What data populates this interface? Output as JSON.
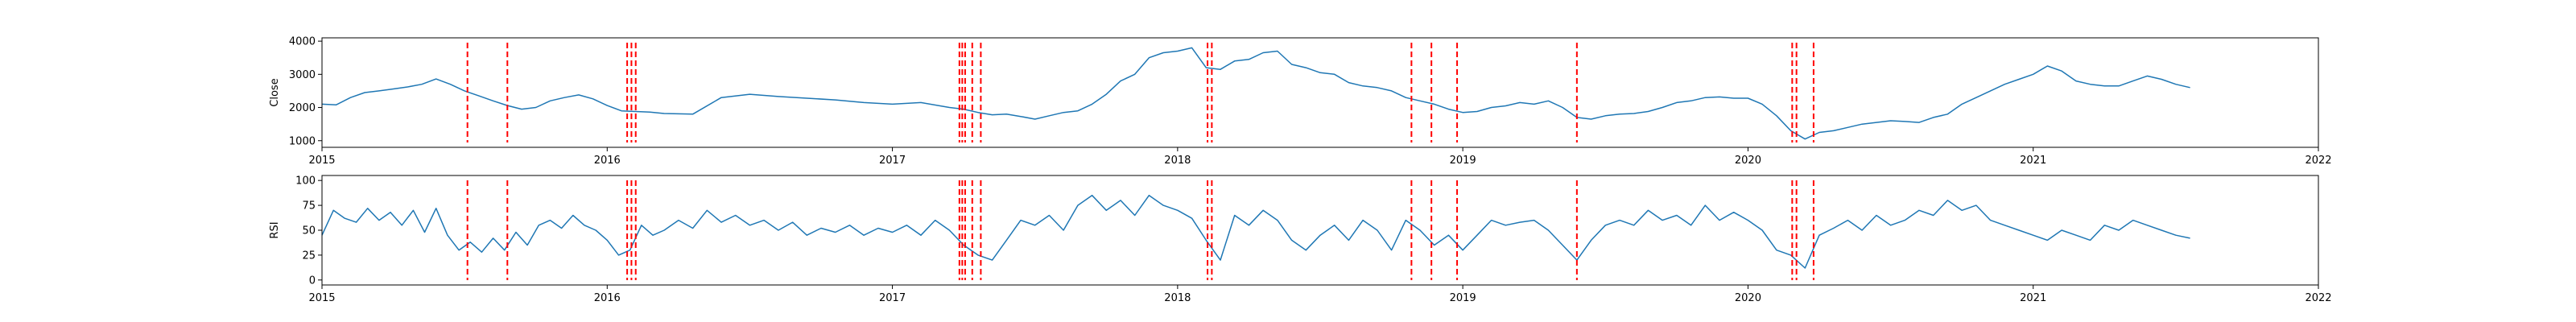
{
  "chart_data": [
    {
      "type": "line",
      "title": "",
      "xlabel": "",
      "ylabel": "Close",
      "xlim": [
        2015.0,
        2022.0
      ],
      "ylim": [
        800,
        4100
      ],
      "xticks": [
        2015,
        2016,
        2017,
        2018,
        2019,
        2020,
        2021,
        2022
      ],
      "xtick_labels": [
        "2015",
        "2016",
        "2017",
        "2018",
        "2019",
        "2020",
        "2021",
        "2022"
      ],
      "yticks": [
        1000,
        2000,
        3000,
        4000
      ],
      "ytick_labels": [
        "1000",
        "2000",
        "3000",
        "4000"
      ],
      "grid": false,
      "series_color": "#1f77b4",
      "marker_color": "#ff0000",
      "series": [
        {
          "x": [
            2015.0,
            2015.05,
            2015.1,
            2015.15,
            2015.2,
            2015.25,
            2015.3,
            2015.35,
            2015.4,
            2015.45,
            2015.5,
            2015.55,
            2015.6,
            2015.65,
            2015.7,
            2015.75,
            2015.8,
            2015.85,
            2015.9,
            2015.95,
            2016.0,
            2016.05,
            2016.1,
            2016.15,
            2016.2,
            2016.3,
            2016.4,
            2016.5,
            2016.6,
            2016.7,
            2016.8,
            2016.9,
            2017.0,
            2017.1,
            2017.2,
            2017.25,
            2017.3,
            2017.35,
            2017.4,
            2017.45,
            2017.5,
            2017.55,
            2017.6,
            2017.65,
            2017.7,
            2017.75,
            2017.8,
            2017.85,
            2017.9,
            2017.95,
            2018.0,
            2018.05,
            2018.1,
            2018.15,
            2018.2,
            2018.25,
            2018.3,
            2018.35,
            2018.4,
            2018.45,
            2018.5,
            2018.55,
            2018.6,
            2018.65,
            2018.7,
            2018.75,
            2018.8,
            2018.85,
            2018.9,
            2018.95,
            2019.0,
            2019.05,
            2019.1,
            2019.15,
            2019.2,
            2019.25,
            2019.3,
            2019.35,
            2019.4,
            2019.45,
            2019.5,
            2019.55,
            2019.6,
            2019.65,
            2019.7,
            2019.75,
            2019.8,
            2019.85,
            2019.9,
            2019.95,
            2020.0,
            2020.05,
            2020.1,
            2020.15,
            2020.2,
            2020.25,
            2020.3,
            2020.35,
            2020.4,
            2020.45,
            2020.5,
            2020.55,
            2020.6,
            2020.65,
            2020.7,
            2020.75,
            2020.8,
            2020.85,
            2020.9,
            2020.95,
            2021.0,
            2021.05,
            2021.1,
            2021.15,
            2021.2,
            2021.25,
            2021.3,
            2021.35,
            2021.4,
            2021.45,
            2021.5,
            2021.55
          ],
          "values": [
            2100,
            2080,
            2300,
            2450,
            2500,
            2560,
            2620,
            2700,
            2860,
            2700,
            2500,
            2350,
            2200,
            2060,
            1950,
            2000,
            2200,
            2300,
            2380,
            2260,
            2060,
            1900,
            1880,
            1860,
            1820,
            1800,
            2300,
            2400,
            2330,
            2280,
            2230,
            2150,
            2100,
            2150,
            2000,
            1950,
            1850,
            1780,
            1800,
            1730,
            1650,
            1750,
            1850,
            1900,
            2100,
            2400,
            2800,
            3000,
            3500,
            3650,
            3700,
            3800,
            3200,
            3150,
            3400,
            3450,
            3650,
            3700,
            3300,
            3200,
            3050,
            3000,
            2750,
            2650,
            2600,
            2500,
            2300,
            2200,
            2100,
            1950,
            1850,
            1880,
            2000,
            2050,
            2150,
            2100,
            2200,
            2000,
            1700,
            1650,
            1750,
            1800,
            1820,
            1880,
            2000,
            2150,
            2200,
            2300,
            2320,
            2280,
            2280,
            2100,
            1750,
            1300,
            1050,
            1250,
            1300,
            1400,
            1500,
            1550,
            1600,
            1580,
            1550,
            1700,
            1800,
            2100,
            2300,
            2500,
            2700,
            2850,
            3000,
            3250,
            3100,
            2800,
            2700,
            2650,
            2650,
            2800,
            2950,
            2850,
            2700,
            2600
          ]
        }
      ]
    },
    {
      "type": "line",
      "title": "",
      "xlabel": "",
      "ylabel": "RSI",
      "xlim": [
        2015.0,
        2022.0
      ],
      "ylim": [
        -5,
        105
      ],
      "xticks": [
        2015,
        2016,
        2017,
        2018,
        2019,
        2020,
        2021,
        2022
      ],
      "xtick_labels": [
        "2015",
        "2016",
        "2017",
        "2018",
        "2019",
        "2020",
        "2021",
        "2022"
      ],
      "yticks": [
        0,
        25,
        50,
        75,
        100
      ],
      "ytick_labels": [
        "0",
        "25",
        "50",
        "75",
        "100"
      ],
      "grid": false,
      "series_color": "#1f77b4",
      "marker_color": "#ff0000",
      "series": [
        {
          "x": [
            2015.0,
            2015.04,
            2015.08,
            2015.12,
            2015.16,
            2015.2,
            2015.24,
            2015.28,
            2015.32,
            2015.36,
            2015.4,
            2015.44,
            2015.48,
            2015.52,
            2015.56,
            2015.6,
            2015.64,
            2015.68,
            2015.72,
            2015.76,
            2015.8,
            2015.84,
            2015.88,
            2015.92,
            2015.96,
            2016.0,
            2016.04,
            2016.08,
            2016.12,
            2016.16,
            2016.2,
            2016.25,
            2016.3,
            2016.35,
            2016.4,
            2016.45,
            2016.5,
            2016.55,
            2016.6,
            2016.65,
            2016.7,
            2016.75,
            2016.8,
            2016.85,
            2016.9,
            2016.95,
            2017.0,
            2017.05,
            2017.1,
            2017.15,
            2017.2,
            2017.25,
            2017.3,
            2017.35,
            2017.4,
            2017.45,
            2017.5,
            2017.55,
            2017.6,
            2017.65,
            2017.7,
            2017.75,
            2017.8,
            2017.85,
            2017.9,
            2017.95,
            2018.0,
            2018.05,
            2018.1,
            2018.15,
            2018.2,
            2018.25,
            2018.3,
            2018.35,
            2018.4,
            2018.45,
            2018.5,
            2018.55,
            2018.6,
            2018.65,
            2018.7,
            2018.75,
            2018.8,
            2018.85,
            2018.9,
            2018.95,
            2019.0,
            2019.05,
            2019.1,
            2019.15,
            2019.2,
            2019.25,
            2019.3,
            2019.35,
            2019.4,
            2019.45,
            2019.5,
            2019.55,
            2019.6,
            2019.65,
            2019.7,
            2019.75,
            2019.8,
            2019.85,
            2019.9,
            2019.95,
            2020.0,
            2020.05,
            2020.1,
            2020.15,
            2020.2,
            2020.25,
            2020.3,
            2020.35,
            2020.4,
            2020.45,
            2020.5,
            2020.55,
            2020.6,
            2020.65,
            2020.7,
            2020.75,
            2020.8,
            2020.85,
            2020.9,
            2020.95,
            2021.0,
            2021.05,
            2021.1,
            2021.15,
            2021.2,
            2021.25,
            2021.3,
            2021.35,
            2021.4,
            2021.45,
            2021.5,
            2021.55
          ],
          "values": [
            45,
            70,
            62,
            58,
            72,
            60,
            68,
            55,
            70,
            48,
            72,
            45,
            30,
            38,
            28,
            42,
            30,
            48,
            35,
            55,
            60,
            52,
            65,
            55,
            50,
            40,
            25,
            30,
            55,
            45,
            50,
            60,
            52,
            70,
            58,
            65,
            55,
            60,
            50,
            58,
            45,
            52,
            48,
            55,
            45,
            52,
            48,
            55,
            45,
            60,
            50,
            35,
            25,
            20,
            40,
            60,
            55,
            65,
            50,
            75,
            85,
            70,
            80,
            65,
            85,
            75,
            70,
            62,
            40,
            20,
            65,
            55,
            70,
            60,
            40,
            30,
            45,
            55,
            40,
            60,
            50,
            30,
            60,
            50,
            35,
            45,
            30,
            45,
            60,
            55,
            58,
            60,
            50,
            35,
            20,
            40,
            55,
            60,
            55,
            70,
            60,
            65,
            55,
            75,
            60,
            68,
            60,
            50,
            30,
            25,
            12,
            45,
            52,
            60,
            50,
            65,
            55,
            60,
            70,
            65,
            80,
            70,
            75,
            60,
            55,
            50,
            45,
            40,
            50,
            45,
            40,
            55,
            50,
            60,
            55,
            50,
            45,
            42
          ]
        }
      ]
    }
  ],
  "event_markers": [
    2015.51,
    2015.65,
    2016.07,
    2016.085,
    2016.1,
    2017.235,
    2017.245,
    2017.255,
    2017.28,
    2017.31,
    2018.105,
    2018.12,
    2018.82,
    2018.89,
    2018.98,
    2019.4,
    2020.155,
    2020.17,
    2020.23
  ]
}
